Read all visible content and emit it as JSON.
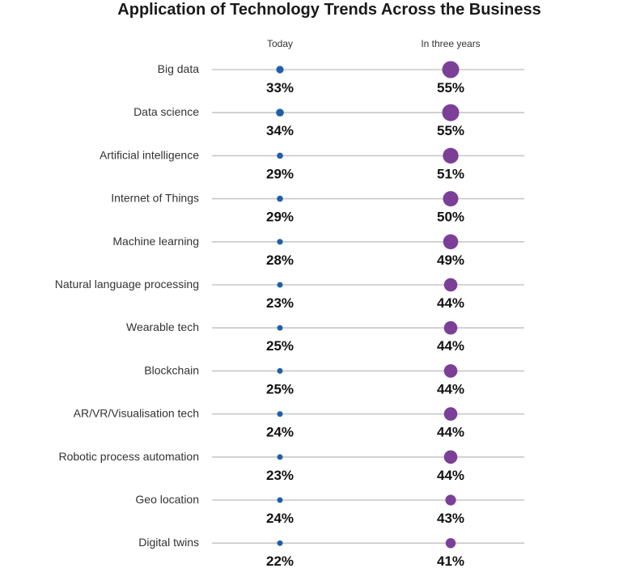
{
  "chart_data": {
    "type": "dot-plot",
    "title": "Application of Technology Trends Across the Business",
    "columns": [
      "Today",
      "In three years"
    ],
    "categories": [
      "Big data",
      "Data science",
      "Artificial intelligence",
      "Internet of Things",
      "Machine learning",
      "Natural language processing",
      "Wearable tech",
      "Blockchain",
      "AR/VR/Visualisation tech",
      "Robotic process automation",
      "Geo location",
      "Digital twins"
    ],
    "series": [
      {
        "name": "Today",
        "color": "#1f5fa8",
        "values": [
          33,
          34,
          29,
          29,
          28,
          23,
          25,
          25,
          24,
          23,
          24,
          22
        ]
      },
      {
        "name": "In three years",
        "color": "#7b3f98",
        "values": [
          55,
          55,
          51,
          50,
          49,
          44,
          44,
          44,
          44,
          44,
          43,
          41
        ]
      }
    ],
    "value_suffix": "%",
    "marker_size_encodes": "value",
    "grid": false,
    "legend": "none"
  }
}
